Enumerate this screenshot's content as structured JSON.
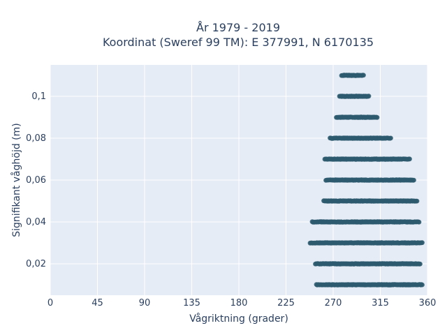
{
  "chart_data": {
    "type": "scatter",
    "title_lines": [
      "År 1979 - 2019",
      "Koordinat (Sweref 99 TM): E 377991, N 6170135"
    ],
    "xlabel": "Vågriktning (grader)",
    "ylabel": "Signifikant våghöjd (m)",
    "xlim": [
      0,
      360
    ],
    "ylim": [
      0.005,
      0.115
    ],
    "grid": true,
    "legend": "none",
    "xticks": [
      0,
      45,
      90,
      135,
      180,
      225,
      270,
      315,
      360
    ],
    "xtick_labels": [
      "0",
      "45",
      "90",
      "135",
      "180",
      "225",
      "270",
      "315",
      "360"
    ],
    "yticks": [
      0.02,
      0.04,
      0.06,
      0.08,
      0.1
    ],
    "ytick_labels": [
      "0,02",
      "0,04",
      "0,06",
      "0,08",
      "0,1"
    ],
    "marker_color": "#2e5a6e",
    "series": [
      {
        "values_by_height": [
          {
            "y": 0.01,
            "x_min": 254,
            "x_max": 355
          },
          {
            "y": 0.02,
            "x_min": 253,
            "x_max": 353
          },
          {
            "y": 0.03,
            "x_min": 248,
            "x_max": 355
          },
          {
            "y": 0.04,
            "x_min": 250,
            "x_max": 352
          },
          {
            "y": 0.05,
            "x_min": 261,
            "x_max": 350
          },
          {
            "y": 0.06,
            "x_min": 263,
            "x_max": 347
          },
          {
            "y": 0.07,
            "x_min": 262,
            "x_max": 343
          },
          {
            "y": 0.08,
            "x_min": 267,
            "x_max": 325
          },
          {
            "y": 0.09,
            "x_min": 273,
            "x_max": 312
          },
          {
            "y": 0.1,
            "x_min": 276,
            "x_max": 304
          },
          {
            "y": 0.11,
            "x_min": 278,
            "x_max": 299
          }
        ]
      }
    ]
  }
}
